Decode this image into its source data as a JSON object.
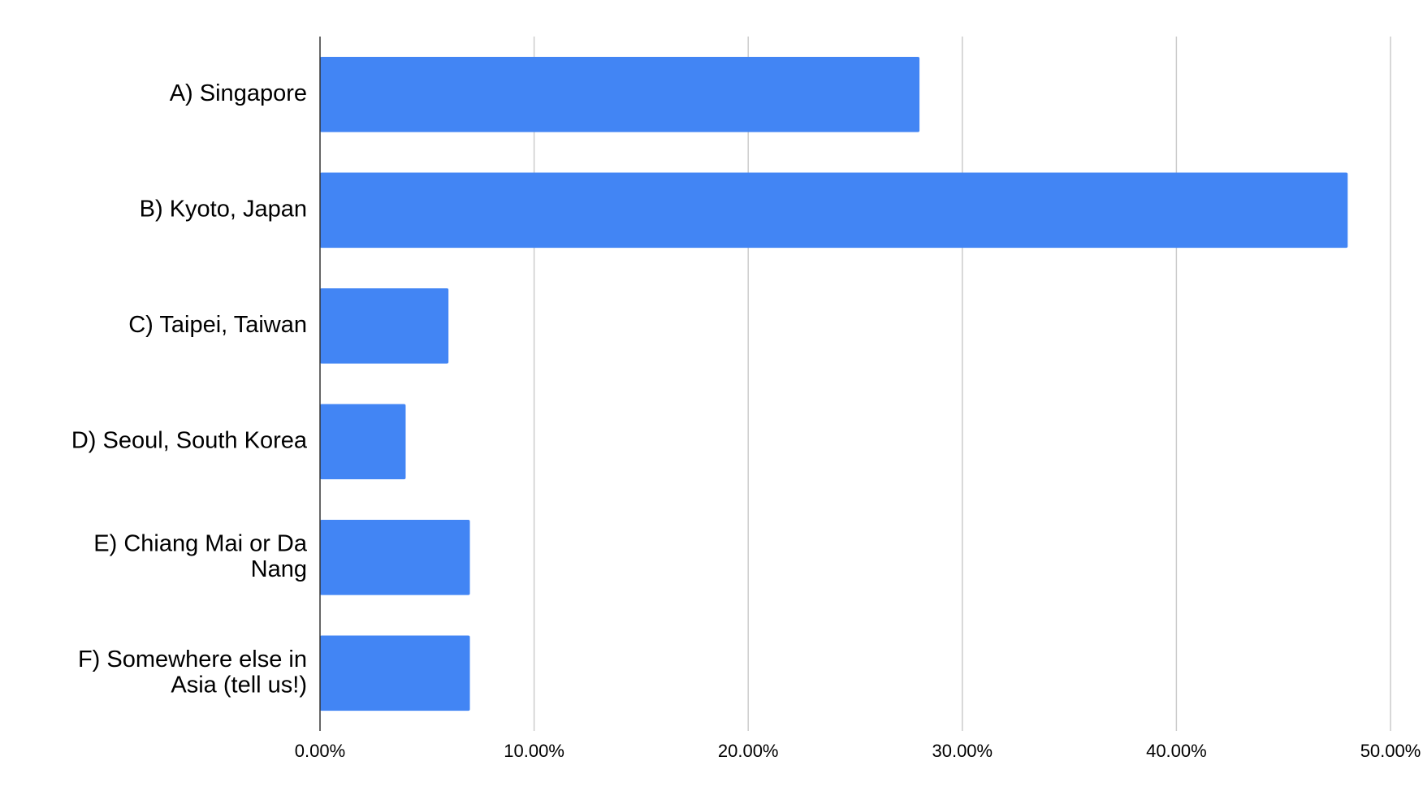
{
  "chart_data": {
    "type": "bar",
    "orientation": "horizontal",
    "categories": [
      "A) Singapore",
      "B) Kyoto, Japan",
      "C) Taipei, Taiwan",
      "D) Seoul, South Korea",
      "E) Chiang Mai or Da Nang",
      "F) Somewhere else in Asia (tell us!)"
    ],
    "values": [
      28,
      48,
      6,
      4,
      7,
      7
    ],
    "color": "#4285f4",
    "xlim": [
      0,
      50
    ],
    "xticks": [
      {
        "value": 0,
        "label": "0.00%"
      },
      {
        "value": 10,
        "label": "10.00%"
      },
      {
        "value": 20,
        "label": "20.00%"
      },
      {
        "value": 30,
        "label": "30.00%"
      },
      {
        "value": 40,
        "label": "40.00%"
      },
      {
        "value": 50,
        "label": "50.00%"
      }
    ],
    "grid": true
  }
}
